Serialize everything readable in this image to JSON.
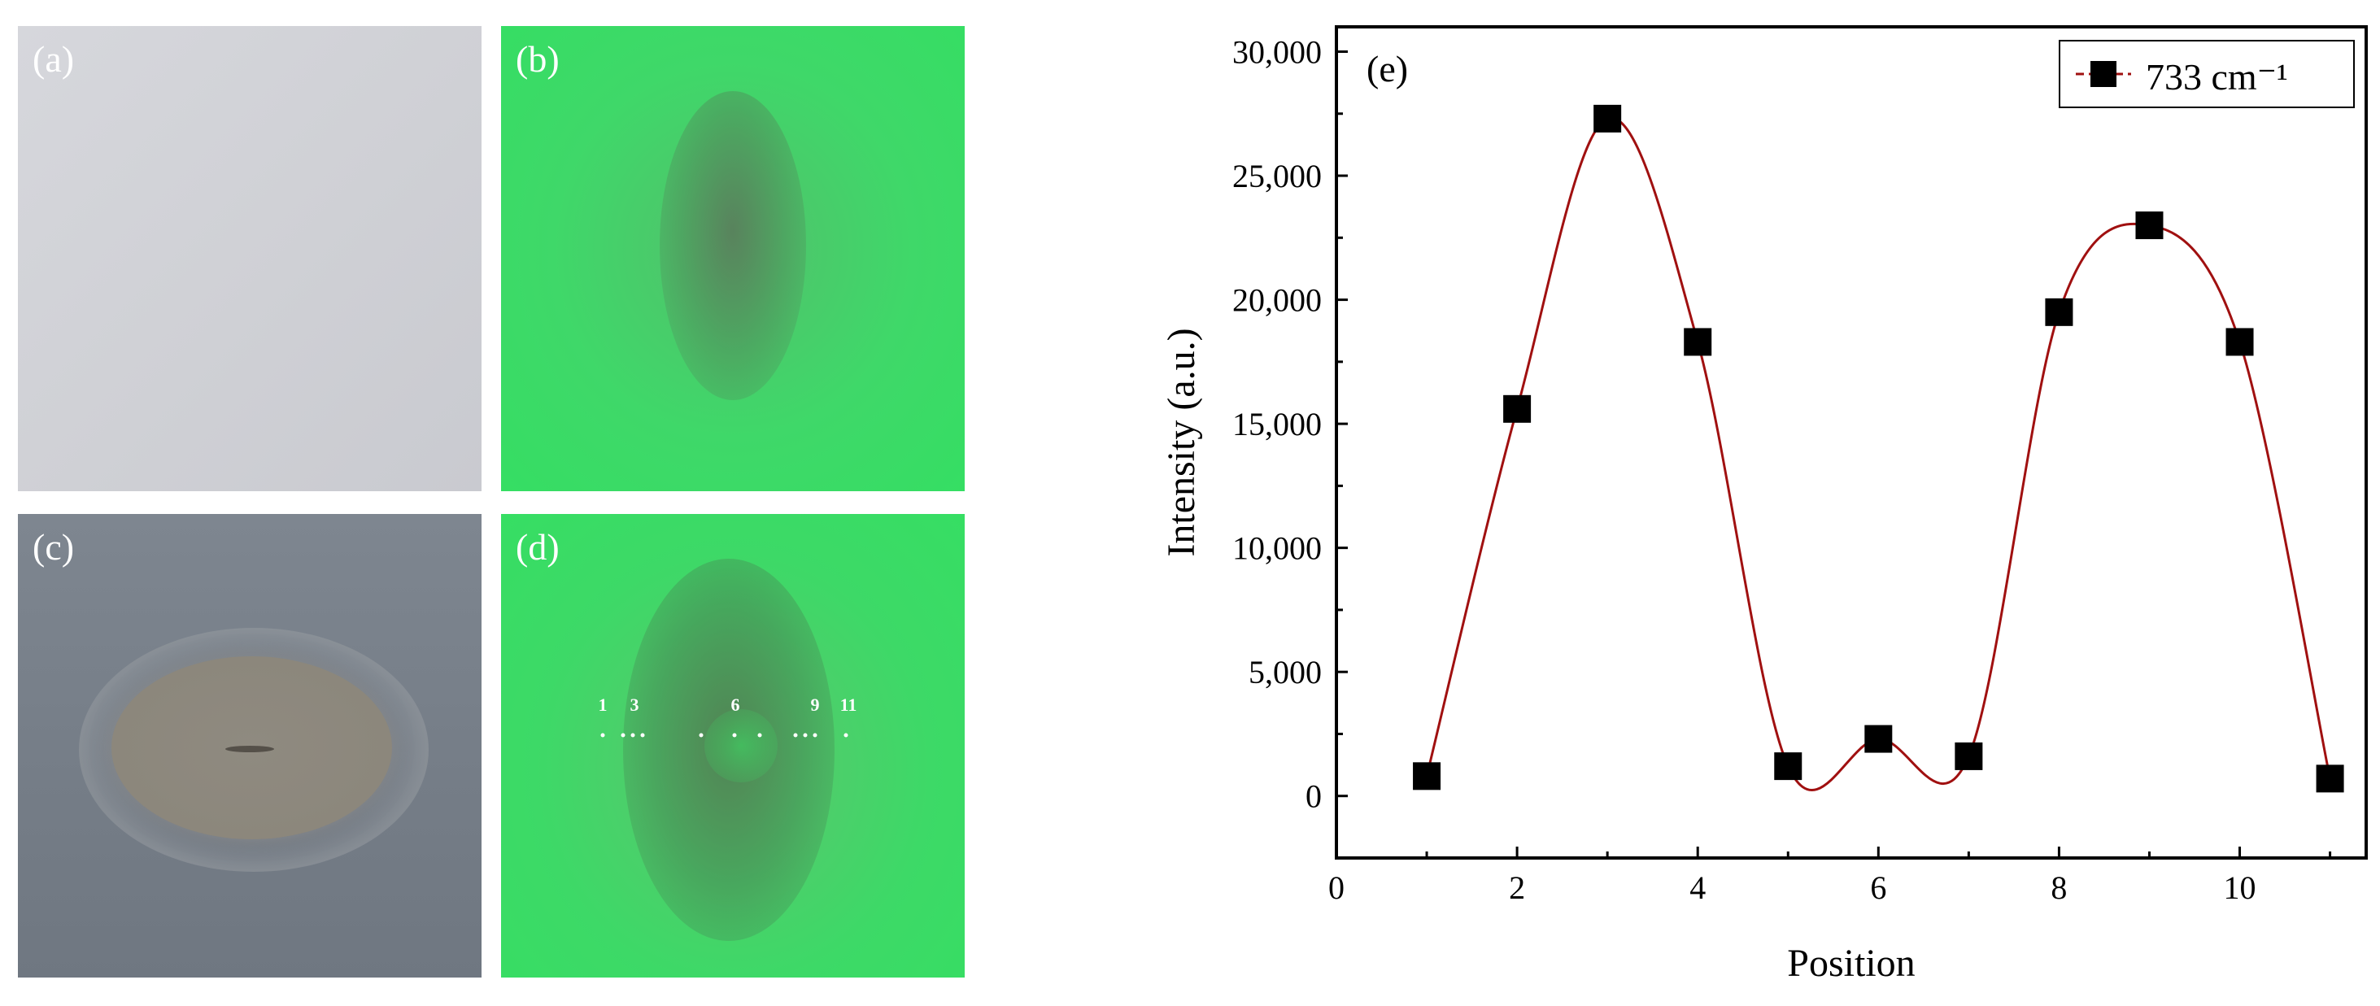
{
  "panels": [
    {
      "id": "a",
      "label": "(a)"
    },
    {
      "id": "b",
      "label": "(b)"
    },
    {
      "id": "c",
      "label": "(c)"
    },
    {
      "id": "d",
      "label": "(d)"
    }
  ],
  "position_markers": [
    "1",
    "3",
    "6",
    "9",
    "11"
  ],
  "colors": {
    "panel_a_bg": "#d3d4d9",
    "fluorescent_green": "#38dc64",
    "panel_c_bg": "#777f89",
    "curve": "#a01010",
    "marker": "#000000"
  },
  "chart_data": {
    "type": "scatter",
    "panel_label": "(e)",
    "xlabel": "Position",
    "ylabel": "Intensity (a.u.)",
    "xlim": [
      0,
      11.4
    ],
    "ylim": [
      -2500,
      31000
    ],
    "x_ticks": [
      0,
      2,
      4,
      6,
      8,
      10
    ],
    "y_ticks": [
      0,
      5000,
      10000,
      15000,
      20000,
      25000,
      30000
    ],
    "y_tick_labels": [
      "0",
      "5,000",
      "10,000",
      "15,000",
      "20,000",
      "25,000",
      "30,000"
    ],
    "legend_position": "top-right",
    "series": [
      {
        "name": "733 cm⁻¹",
        "marker": "square",
        "line": "smooth spline",
        "x": [
          1,
          2,
          3,
          4,
          5,
          6,
          7,
          8,
          9,
          10,
          11
        ],
        "y": [
          800,
          15600,
          27300,
          18300,
          1200,
          2300,
          1600,
          19500,
          23000,
          18300,
          700
        ]
      }
    ]
  }
}
